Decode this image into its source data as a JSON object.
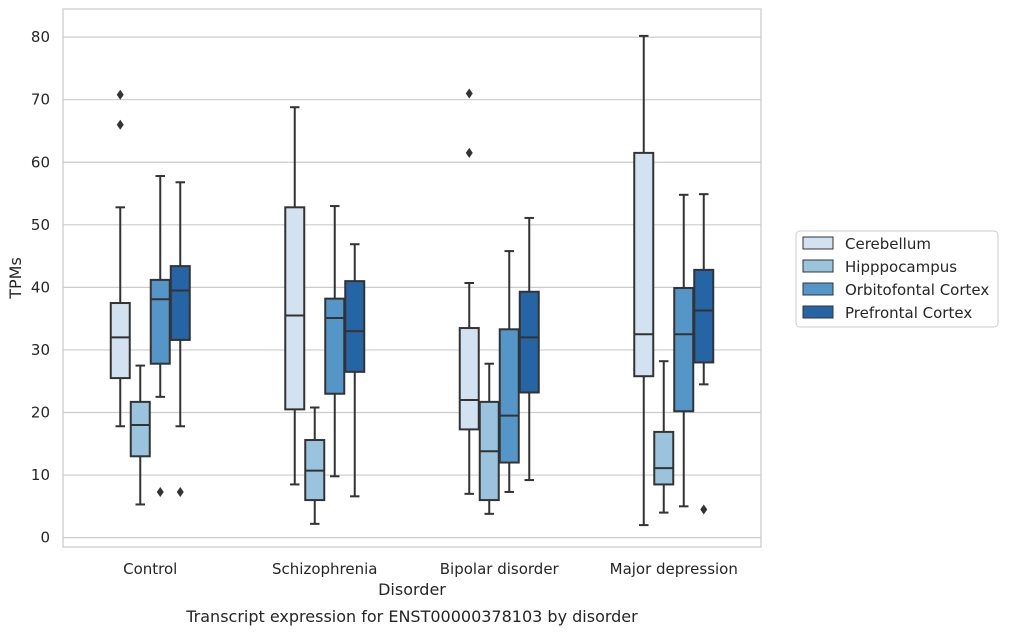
{
  "chart_data": {
    "type": "box",
    "title": "",
    "caption": "Transcript expression for ENST00000378103 by disorder",
    "xlabel": "Disorder",
    "ylabel": "TPMs",
    "ylim": [
      -1.5,
      84.5
    ],
    "yticks": [
      0,
      10,
      20,
      30,
      40,
      50,
      60,
      70,
      80
    ],
    "grid": "horizontal",
    "legend_position": "right",
    "categories": [
      "Control",
      "Schizophrenia",
      "Bipolar disorder",
      "Major depression"
    ],
    "series": [
      {
        "name": "Cerebellum",
        "color": "#d3e2f1",
        "boxes": [
          {
            "whisker_low": 17.8,
            "q1": 25.5,
            "median": 32.0,
            "q3": 37.5,
            "whisker_high": 52.8,
            "outliers": [
              66.0,
              70.8
            ]
          },
          {
            "whisker_low": 8.5,
            "q1": 20.5,
            "median": 35.5,
            "q3": 52.8,
            "whisker_high": 68.8,
            "outliers": []
          },
          {
            "whisker_low": 7.0,
            "q1": 17.3,
            "median": 22.0,
            "q3": 33.5,
            "whisker_high": 40.7,
            "outliers": [
              61.5,
              71.0
            ]
          },
          {
            "whisker_low": 2.0,
            "q1": 25.8,
            "median": 32.5,
            "q3": 61.5,
            "whisker_high": 80.2,
            "outliers": []
          }
        ]
      },
      {
        "name": "Hipppocampus",
        "color": "#9ac4dd",
        "boxes": [
          {
            "whisker_low": 5.3,
            "q1": 13.0,
            "median": 18.0,
            "q3": 21.7,
            "whisker_high": 27.5,
            "outliers": []
          },
          {
            "whisker_low": 2.2,
            "q1": 6.0,
            "median": 10.7,
            "q3": 15.6,
            "whisker_high": 20.8,
            "outliers": []
          },
          {
            "whisker_low": 3.8,
            "q1": 6.0,
            "median": 13.8,
            "q3": 21.7,
            "whisker_high": 27.8,
            "outliers": []
          },
          {
            "whisker_low": 4.0,
            "q1": 8.5,
            "median": 11.1,
            "q3": 16.9,
            "whisker_high": 28.2,
            "outliers": []
          }
        ]
      },
      {
        "name": "Orbitofontal Cortex",
        "color": "#5496c8",
        "boxes": [
          {
            "whisker_low": 22.5,
            "q1": 27.8,
            "median": 38.1,
            "q3": 41.2,
            "whisker_high": 57.8,
            "outliers": [
              7.3
            ]
          },
          {
            "whisker_low": 9.8,
            "q1": 23.0,
            "median": 35.1,
            "q3": 38.2,
            "whisker_high": 53.0,
            "outliers": []
          },
          {
            "whisker_low": 7.3,
            "q1": 12.0,
            "median": 19.5,
            "q3": 33.3,
            "whisker_high": 45.8,
            "outliers": []
          },
          {
            "whisker_low": 5.0,
            "q1": 20.2,
            "median": 32.5,
            "q3": 39.9,
            "whisker_high": 54.8,
            "outliers": []
          }
        ]
      },
      {
        "name": "Prefrontal Cortex",
        "color": "#2565a5",
        "boxes": [
          {
            "whisker_low": 17.8,
            "q1": 31.6,
            "median": 39.5,
            "q3": 43.4,
            "whisker_high": 56.8,
            "outliers": [
              7.3
            ]
          },
          {
            "whisker_low": 6.6,
            "q1": 26.5,
            "median": 33.0,
            "q3": 41.0,
            "whisker_high": 46.9,
            "outliers": []
          },
          {
            "whisker_low": 9.2,
            "q1": 23.2,
            "median": 32.0,
            "q3": 39.3,
            "whisker_high": 51.1,
            "outliers": []
          },
          {
            "whisker_low": 24.5,
            "q1": 28.0,
            "median": 36.3,
            "q3": 42.8,
            "whisker_high": 54.9,
            "outliers": [
              4.5
            ]
          }
        ]
      }
    ],
    "colors": {
      "grid": "#cccccc",
      "frame": "#cccccc",
      "box_line": "#333333",
      "text": "#262626"
    }
  }
}
